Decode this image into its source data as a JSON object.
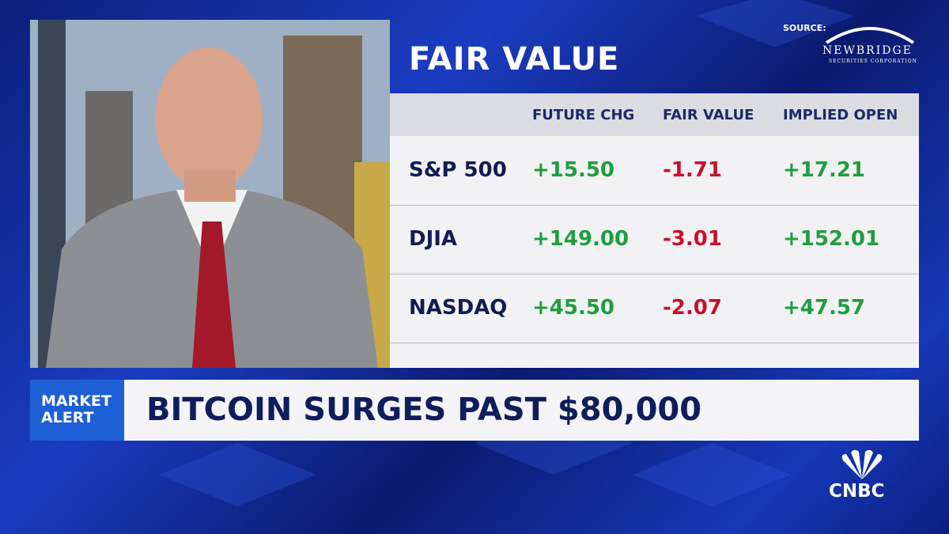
{
  "header": {
    "title": "FAIR VALUE",
    "source": "SOURCE:",
    "logo": "NEWBRIDGE",
    "logo_sub": "SECURITIES CORPORATION"
  },
  "table": {
    "columns": [
      "FUTURE CHG",
      "FAIR VALUE",
      "IMPLIED OPEN"
    ],
    "rows": [
      [
        "S&P 500",
        "+15.50",
        "-1.71",
        "+17.21"
      ],
      [
        "DJIA",
        "+149.00",
        "-3.01",
        "+152.01"
      ],
      [
        "NASDAQ",
        "+45.50",
        "-2.07",
        "+47.57"
      ]
    ]
  },
  "banner": {
    "label": [
      "MARKET",
      "ALERT"
    ],
    "headline": "BITCOIN SURGES PAST $80,000"
  },
  "network": "CNBC"
}
